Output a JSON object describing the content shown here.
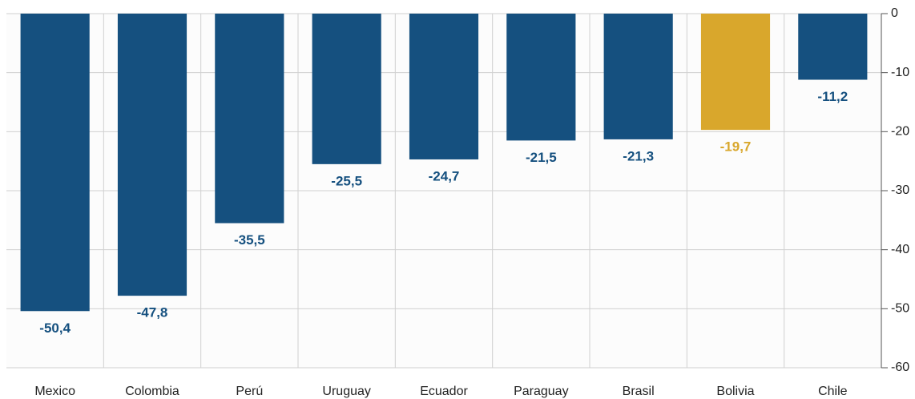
{
  "chart_data": {
    "type": "bar",
    "categories": [
      "Mexico",
      "Colombia",
      "Perú",
      "Uruguay",
      "Ecuador",
      "Paraguay",
      "Brasil",
      "Bolivia",
      "Chile"
    ],
    "values": [
      -50.4,
      -47.8,
      -35.5,
      -25.5,
      -24.7,
      -21.5,
      -21.3,
      -19.7,
      -11.2
    ],
    "value_labels": [
      "-50,4",
      "-47,8",
      "-35,5",
      "-25,5",
      "-24,7",
      "-21,5",
      "-21,3",
      "-19,7",
      "-11,2"
    ],
    "colors": [
      "#15507f",
      "#15507f",
      "#15507f",
      "#15507f",
      "#15507f",
      "#15507f",
      "#15507f",
      "#d9a72c",
      "#15507f"
    ],
    "ylim": [
      -60,
      0
    ],
    "yticks": [
      0,
      -10,
      -20,
      -30,
      -40,
      -50,
      -60
    ],
    "grid": true,
    "y_axis_side": "right"
  }
}
